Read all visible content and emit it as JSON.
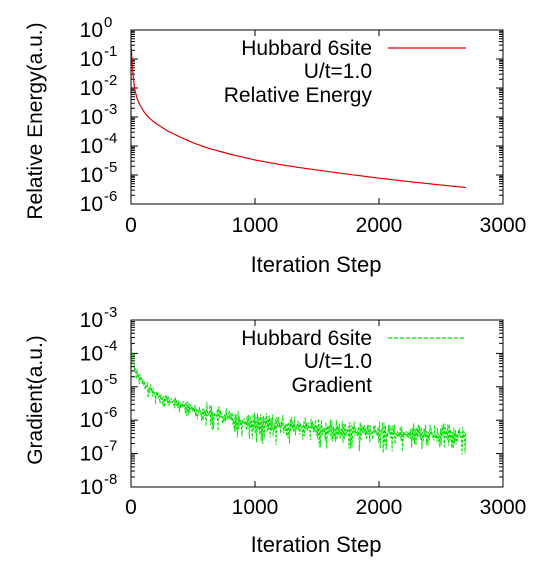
{
  "chart_data": [
    {
      "type": "line",
      "xlabel": "Iteration Step",
      "ylabel": "Relative Energy(a.u.)",
      "xlim": [
        0,
        3000
      ],
      "ylim": [
        1e-06,
        1
      ],
      "yscale": "log",
      "grid": false,
      "legend_position": "top-right",
      "x_ticks": [
        "0",
        "1000",
        "2000",
        "3000"
      ],
      "y_ticks": [
        {
          "base": "10",
          "exp": "-6"
        },
        {
          "base": "10",
          "exp": "-5"
        },
        {
          "base": "10",
          "exp": "-4"
        },
        {
          "base": "10",
          "exp": "-3"
        },
        {
          "base": "10",
          "exp": "-2"
        },
        {
          "base": "10",
          "exp": "-1"
        },
        {
          "base": "10",
          "exp": "0"
        }
      ],
      "legend": {
        "line1": "Hubbard 6site",
        "line2": "U/t=1.0",
        "line3": "Relative Energy"
      },
      "series": [
        {
          "color": "#e00000",
          "x": [
            0,
            5,
            10,
            20,
            30,
            50,
            75,
            100,
            150,
            200,
            300,
            400,
            500,
            600,
            800,
            1000,
            1200,
            1400,
            1600,
            1800,
            2000,
            2200,
            2400,
            2600,
            2700
          ],
          "y": [
            0.3,
            0.15,
            0.06,
            0.02,
            0.009,
            0.004,
            0.0025,
            0.0016,
            0.0009,
            0.0006,
            0.00032,
            0.0002,
            0.00013,
            9e-05,
            5.2e-05,
            3.3e-05,
            2.3e-05,
            1.7e-05,
            1.3e-05,
            1e-05,
            7.8e-06,
            6.2e-06,
            5e-06,
            4.1e-06,
            3.7e-06
          ]
        }
      ]
    },
    {
      "type": "line",
      "xlabel": "Iteration Step",
      "ylabel": "Gradient(a.u.)",
      "xlim": [
        0,
        3000
      ],
      "ylim": [
        1e-08,
        0.001
      ],
      "yscale": "log",
      "grid": false,
      "legend_position": "top-right",
      "x_ticks": [
        "0",
        "1000",
        "2000",
        "3000"
      ],
      "y_ticks": [
        {
          "base": "10",
          "exp": "-8"
        },
        {
          "base": "10",
          "exp": "-7"
        },
        {
          "base": "10",
          "exp": "-6"
        },
        {
          "base": "10",
          "exp": "-5"
        },
        {
          "base": "10",
          "exp": "-4"
        },
        {
          "base": "10",
          "exp": "-3"
        }
      ],
      "legend": {
        "line1": "Hubbard 6site",
        "line2": "U/t=1.0",
        "line3": "Gradient"
      },
      "series": [
        {
          "color": "#00e000",
          "x": [
            0,
            10,
            20,
            50,
            100,
            200,
            300,
            400,
            500,
            600,
            700,
            800,
            900,
            1000,
            1200,
            1400,
            1600,
            1800,
            2000,
            2200,
            2400,
            2600,
            2700
          ],
          "y": [
            0.0003,
            0.0001,
            5e-05,
            2.5e-05,
            1.2e-05,
            6e-06,
            4e-06,
            2.9e-06,
            2.2e-06,
            1.7e-06,
            1.3e-06,
            1.1e-06,
            9.5e-07,
            8e-07,
            6.8e-07,
            5.8e-07,
            5e-07,
            4.5e-07,
            4.2e-07,
            4e-07,
            3.8e-07,
            3.6e-07,
            3.5e-07
          ],
          "oscillation_low_factor": 0.25,
          "oscillation_high_factor": 2.2
        }
      ]
    }
  ]
}
